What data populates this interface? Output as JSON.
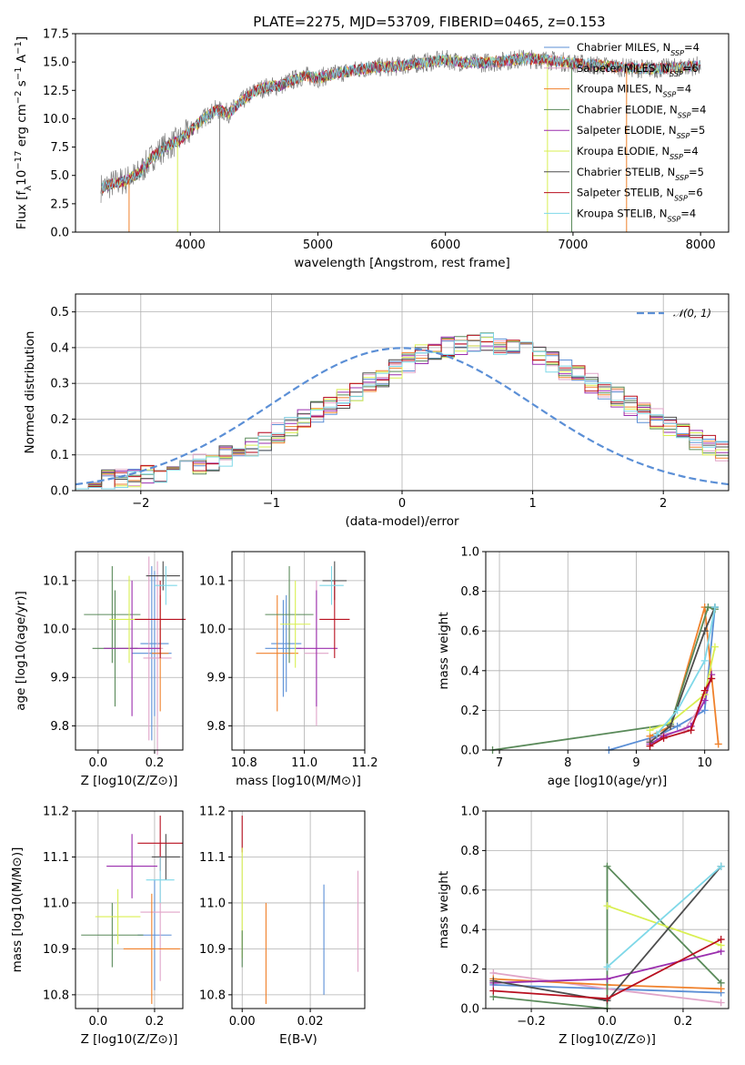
{
  "figure": {
    "title": "PLATE=2275, MJD=53709, FIBERID=0465, z=0.153"
  },
  "chart_data": [
    {
      "type": "line",
      "panel": "spectrum",
      "title": "PLATE=2275, MJD=53709, FIBERID=0465, z=0.153",
      "xlabel": "wavelength [Angstrom, rest frame]",
      "ylabel": "Flux [f_λ 10^-17 erg cm^-2 s^-1 A^-1]",
      "xlim": [
        3100,
        8220
      ],
      "ylim": [
        0,
        17.5
      ],
      "xticks": [
        4000,
        5000,
        6000,
        7000,
        8000
      ],
      "yticks": [
        0.0,
        2.5,
        5.0,
        7.5,
        10.0,
        12.5,
        15.0,
        17.5
      ],
      "ytick_labels": [
        "0.0",
        "2.5",
        "5.0",
        "7.5",
        "10.0",
        "12.5",
        "15.0",
        "17.5"
      ],
      "grid": false,
      "legend_position": "upper-right",
      "data_envelope": {
        "x": [
          3300,
          3400,
          3500,
          3600,
          3700,
          3800,
          3900,
          4000,
          4100,
          4200,
          4300,
          4400,
          4500,
          4600,
          4700,
          4800,
          4900,
          5000,
          5200,
          5400,
          5600,
          5800,
          6000,
          6200,
          6400,
          6600,
          6800,
          7000,
          7200,
          7400,
          7600,
          7800,
          8000
        ],
        "y": [
          3.9,
          4.3,
          4.6,
          5.2,
          6.6,
          7.5,
          8.0,
          8.9,
          10.0,
          10.8,
          10.5,
          11.5,
          12.4,
          12.8,
          12.9,
          13.4,
          13.8,
          13.6,
          14.1,
          14.5,
          14.6,
          14.9,
          15.2,
          14.9,
          15.0,
          15.3,
          15.2,
          14.9,
          14.7,
          14.5,
          14.4,
          14.5,
          14.7
        ]
      },
      "sharp_drops_x": [
        3520,
        3900,
        4230,
        6800,
        6990,
        7420
      ],
      "series": [
        {
          "name": "Chabrier MILES, N_SSP=4",
          "color": "#5b8fd6"
        },
        {
          "name": "Salpeter MILES, N_SSP=6",
          "color": "#e0a4c8"
        },
        {
          "name": "Kroupa MILES, N_SSP=4",
          "color": "#f0812b"
        },
        {
          "name": "Chabrier ELODIE, N_SSP=4",
          "color": "#5a8a5a"
        },
        {
          "name": "Salpeter ELODIE, N_SSP=5",
          "color": "#9b2fae"
        },
        {
          "name": "Kroupa ELODIE, N_SSP=4",
          "color": "#d9ef52"
        },
        {
          "name": "Chabrier STELIB, N_SSP=5",
          "color": "#4d4d4d"
        },
        {
          "name": "Salpeter STELIB, N_SSP=6",
          "color": "#b80f1f"
        },
        {
          "name": "Kroupa STELIB, N_SSP=4",
          "color": "#7fd8e8"
        }
      ]
    },
    {
      "type": "line",
      "panel": "residuals",
      "xlabel": "(data-model)/error",
      "ylabel": "Normed distribution",
      "xlim": [
        -2.5,
        2.5
      ],
      "ylim": [
        0,
        0.55
      ],
      "xticks": [
        -2,
        -1,
        0,
        1,
        2
      ],
      "xtick_labels": [
        "−2",
        "−1",
        "0",
        "1",
        "2"
      ],
      "yticks": [
        0.0,
        0.1,
        0.2,
        0.3,
        0.4,
        0.5
      ],
      "ytick_labels": [
        "0.0",
        "0.1",
        "0.2",
        "0.3",
        "0.4",
        "0.5"
      ],
      "grid": true,
      "legend_position": "upper-right",
      "legend_label": "𝒩(0, 1)",
      "bin_edges_start": -2.5,
      "bin_width": 0.1,
      "mean_histogram": [
        0.02,
        0.025,
        0.03,
        0.035,
        0.04,
        0.045,
        0.05,
        0.058,
        0.065,
        0.075,
        0.085,
        0.095,
        0.11,
        0.125,
        0.14,
        0.16,
        0.18,
        0.2,
        0.22,
        0.24,
        0.26,
        0.28,
        0.3,
        0.32,
        0.34,
        0.36,
        0.38,
        0.39,
        0.4,
        0.41,
        0.415,
        0.42,
        0.41,
        0.4,
        0.39,
        0.38,
        0.36,
        0.34,
        0.32,
        0.3,
        0.28,
        0.26,
        0.24,
        0.22,
        0.2,
        0.18,
        0.16,
        0.14,
        0.125,
        0.11
      ],
      "normal": {
        "mean": 0,
        "sigma": 1,
        "color": "#5b8fd6"
      }
    },
    {
      "type": "scatter",
      "panel": "age_vs_Z",
      "xlabel": "Z [log10(Z/Z⊙)]",
      "ylabel": "age  [log10(age/yr)]",
      "xlim": [
        -0.08,
        0.3
      ],
      "ylim": [
        9.75,
        10.16
      ],
      "xticks": [
        0.0,
        0.2
      ],
      "xtick_labels": [
        "0.0",
        "0.2"
      ],
      "yticks": [
        9.8,
        9.9,
        10.0,
        10.1
      ],
      "ytick_labels": [
        "9.8",
        "9.9",
        "10.0",
        "10.1"
      ],
      "grid": true,
      "points": [
        {
          "x": 0.19,
          "y": 9.95,
          "xerr": 0.07,
          "yerr": 0.18,
          "series": "Chabrier MILES"
        },
        {
          "x": 0.2,
          "y": 9.97,
          "xerr": 0.05,
          "yerr": 0.15,
          "series": "Chabrier MILES"
        },
        {
          "x": 0.18,
          "y": 9.96,
          "xerr": 0.05,
          "yerr": 0.19,
          "series": "Salpeter MILES"
        },
        {
          "x": 0.21,
          "y": 9.94,
          "xerr": 0.05,
          "yerr": 0.2,
          "series": "Salpeter MILES"
        },
        {
          "x": 0.22,
          "y": 9.95,
          "xerr": 0.03,
          "yerr": 0.12,
          "series": "Kroupa MILES"
        },
        {
          "x": 0.05,
          "y": 10.03,
          "xerr": 0.1,
          "yerr": 0.1,
          "series": "Chabrier ELODIE"
        },
        {
          "x": 0.06,
          "y": 9.96,
          "xerr": 0.08,
          "yerr": 0.12,
          "series": "Chabrier ELODIE"
        },
        {
          "x": 0.12,
          "y": 9.96,
          "xerr": 0.1,
          "yerr": 0.14,
          "series": "Salpeter ELODIE"
        },
        {
          "x": 0.11,
          "y": 10.02,
          "xerr": 0.07,
          "yerr": 0.09,
          "series": "Kroupa ELODIE"
        },
        {
          "x": 0.23,
          "y": 10.11,
          "xerr": 0.06,
          "yerr": 0.03,
          "series": "Chabrier STELIB"
        },
        {
          "x": 0.22,
          "y": 10.02,
          "xerr": 0.09,
          "yerr": 0.08,
          "series": "Salpeter STELIB"
        },
        {
          "x": 0.24,
          "y": 10.09,
          "xerr": 0.04,
          "yerr": 0.04,
          "series": "Kroupa STELIB"
        }
      ]
    },
    {
      "type": "scatter",
      "panel": "age_vs_mass",
      "xlabel": "mass [log10(M/M⊙)]",
      "ylabel": "",
      "xlim": [
        10.76,
        11.2
      ],
      "ylim": [
        9.75,
        10.16
      ],
      "xticks": [
        10.8,
        11.0,
        11.2
      ],
      "xtick_labels": [
        "10.8",
        "11.0",
        "11.2"
      ],
      "yticks": [
        9.8,
        9.9,
        10.0,
        10.1
      ],
      "ytick_labels": [
        "9.8",
        "9.9",
        "10.0",
        "10.1"
      ],
      "grid": true,
      "points": [
        {
          "x": 10.93,
          "y": 9.96,
          "xerr": 0.06,
          "yerr": 0.1,
          "series": "Chabrier MILES"
        },
        {
          "x": 10.94,
          "y": 9.97,
          "xerr": 0.05,
          "yerr": 0.1,
          "series": "Chabrier MILES"
        },
        {
          "x": 11.04,
          "y": 9.95,
          "xerr": 0.04,
          "yerr": 0.15,
          "series": "Salpeter MILES"
        },
        {
          "x": 10.91,
          "y": 9.95,
          "xerr": 0.07,
          "yerr": 0.12,
          "series": "Kroupa MILES"
        },
        {
          "x": 10.95,
          "y": 10.03,
          "xerr": 0.08,
          "yerr": 0.1,
          "series": "Chabrier ELODIE"
        },
        {
          "x": 11.04,
          "y": 9.96,
          "xerr": 0.07,
          "yerr": 0.12,
          "series": "Salpeter ELODIE"
        },
        {
          "x": 10.97,
          "y": 10.01,
          "xerr": 0.05,
          "yerr": 0.09,
          "series": "Kroupa ELODIE"
        },
        {
          "x": 11.1,
          "y": 10.1,
          "xerr": 0.04,
          "yerr": 0.04,
          "series": "Chabrier STELIB"
        },
        {
          "x": 11.1,
          "y": 10.02,
          "xerr": 0.05,
          "yerr": 0.08,
          "series": "Salpeter STELIB"
        },
        {
          "x": 11.09,
          "y": 10.09,
          "xerr": 0.04,
          "yerr": 0.04,
          "series": "Kroupa STELIB"
        }
      ]
    },
    {
      "type": "line",
      "panel": "mass_weight_vs_age",
      "xlabel": "age  [log10(age/yr)]",
      "ylabel": "mass weight",
      "xlim": [
        6.8,
        10.35
      ],
      "ylim": [
        0,
        1
      ],
      "xticks": [
        7,
        8,
        9,
        10
      ],
      "xtick_labels": [
        "7",
        "8",
        "9",
        "10"
      ],
      "yticks": [
        0.0,
        0.2,
        0.4,
        0.6,
        0.8,
        1.0
      ],
      "ytick_labels": [
        "0.0",
        "0.2",
        "0.4",
        "0.6",
        "0.8",
        "1.0"
      ],
      "grid": true,
      "series": [
        {
          "name": "Chabrier MILES",
          "x": [
            8.6,
            9.3,
            9.6,
            10.0,
            10.15
          ],
          "y": [
            0.0,
            0.07,
            0.12,
            0.2,
            0.72
          ]
        },
        {
          "name": "Salpeter MILES",
          "x": [
            9.2,
            9.4,
            9.7,
            9.9,
            10.1
          ],
          "y": [
            0.05,
            0.08,
            0.1,
            0.2,
            0.36
          ]
        },
        {
          "name": "Kroupa MILES",
          "x": [
            9.2,
            9.5,
            10.0,
            10.2
          ],
          "y": [
            0.07,
            0.12,
            0.72,
            0.03
          ]
        },
        {
          "name": "Chabrier ELODIE",
          "x": [
            6.9,
            9.5,
            10.05,
            10.15
          ],
          "y": [
            0.0,
            0.13,
            0.72,
            0.71
          ]
        },
        {
          "name": "Salpeter ELODIE",
          "x": [
            9.2,
            9.4,
            9.8,
            10.0,
            10.1
          ],
          "y": [
            0.03,
            0.07,
            0.12,
            0.25,
            0.38
          ]
        },
        {
          "name": "Kroupa ELODIE",
          "x": [
            9.2,
            9.5,
            10.0,
            10.15
          ],
          "y": [
            0.1,
            0.14,
            0.28,
            0.52
          ]
        },
        {
          "name": "Chabrier STELIB",
          "x": [
            9.2,
            9.5,
            10.0,
            10.15
          ],
          "y": [
            0.04,
            0.12,
            0.6,
            0.72
          ]
        },
        {
          "name": "Salpeter STELIB",
          "x": [
            9.2,
            9.4,
            9.8,
            10.0,
            10.1
          ],
          "y": [
            0.02,
            0.06,
            0.1,
            0.3,
            0.36
          ]
        },
        {
          "name": "Kroupa STELIB",
          "x": [
            9.3,
            9.6,
            10.0,
            10.15
          ],
          "y": [
            0.08,
            0.2,
            0.45,
            0.72
          ]
        }
      ]
    },
    {
      "type": "scatter",
      "panel": "mass_vs_Z",
      "xlabel": "Z [log10(Z/Z⊙)]",
      "ylabel": "mass [log10(M/M⊙)]",
      "xlim": [
        -0.08,
        0.3
      ],
      "ylim": [
        10.77,
        11.2
      ],
      "xticks": [
        0.0,
        0.2
      ],
      "xtick_labels": [
        "0.0",
        "0.2"
      ],
      "yticks": [
        10.8,
        10.9,
        11.0,
        11.1,
        11.2
      ],
      "ytick_labels": [
        "10.8",
        "10.9",
        "11.0",
        "11.1",
        "11.2"
      ],
      "grid": true,
      "points": [
        {
          "x": 0.2,
          "y": 10.93,
          "xerr": 0.06,
          "yerr": 0.12,
          "series": "Chabrier MILES"
        },
        {
          "x": 0.22,
          "y": 10.98,
          "xerr": 0.07,
          "yerr": 0.15,
          "series": "Salpeter MILES"
        },
        {
          "x": 0.19,
          "y": 10.9,
          "xerr": 0.1,
          "yerr": 0.12,
          "series": "Kroupa MILES"
        },
        {
          "x": 0.05,
          "y": 10.93,
          "xerr": 0.11,
          "yerr": 0.07,
          "series": "Chabrier ELODIE"
        },
        {
          "x": 0.12,
          "y": 11.08,
          "xerr": 0.09,
          "yerr": 0.07,
          "series": "Salpeter ELODIE"
        },
        {
          "x": 0.07,
          "y": 10.97,
          "xerr": 0.08,
          "yerr": 0.06,
          "series": "Kroupa ELODIE"
        },
        {
          "x": 0.24,
          "y": 11.1,
          "xerr": 0.05,
          "yerr": 0.05,
          "series": "Chabrier STELIB"
        },
        {
          "x": 0.22,
          "y": 11.13,
          "xerr": 0.08,
          "yerr": 0.06,
          "series": "Salpeter STELIB"
        },
        {
          "x": 0.22,
          "y": 11.05,
          "xerr": 0.05,
          "yerr": 0.05,
          "series": "Kroupa STELIB"
        }
      ]
    },
    {
      "type": "scatter",
      "panel": "mass_vs_ebv",
      "xlabel": "E(B-V)",
      "ylabel": "",
      "xlim": [
        -0.003,
        0.036
      ],
      "ylim": [
        10.77,
        11.2
      ],
      "xticks": [
        0.0,
        0.02
      ],
      "xtick_labels": [
        "0.00",
        "0.02"
      ],
      "yticks": [
        10.8,
        10.9,
        11.0,
        11.1,
        11.2
      ],
      "ytick_labels": [
        "10.8",
        "10.9",
        "11.0",
        "11.1",
        "11.2"
      ],
      "grid": true,
      "points": [
        {
          "x": 0.0,
          "y": 11.15,
          "xerr": 0,
          "yerr": 0.04,
          "series": "Salpeter STELIB"
        },
        {
          "x": 0.0,
          "y": 11.0,
          "xerr": 0,
          "yerr": 0.12,
          "series": "Kroupa ELODIE"
        },
        {
          "x": 0.0,
          "y": 10.9,
          "xerr": 0,
          "yerr": 0.04,
          "series": "Chabrier ELODIE"
        },
        {
          "x": 0.007,
          "y": 10.89,
          "xerr": 0,
          "yerr": 0.11,
          "series": "Kroupa MILES"
        },
        {
          "x": 0.024,
          "y": 10.92,
          "xerr": 0,
          "yerr": 0.12,
          "series": "Chabrier MILES"
        },
        {
          "x": 0.034,
          "y": 10.96,
          "xerr": 0,
          "yerr": 0.11,
          "series": "Salpeter MILES"
        }
      ]
    },
    {
      "type": "line",
      "panel": "mass_weight_vs_Z",
      "xlabel": "Z [log10(Z/Z⊙)]",
      "ylabel": "mass weight",
      "xlim": [
        -0.32,
        0.32
      ],
      "ylim": [
        0,
        1
      ],
      "xticks": [
        -0.2,
        0.0,
        0.2
      ],
      "xtick_labels": [
        "−0.2",
        "0.0",
        "0.2"
      ],
      "yticks": [
        0.0,
        0.2,
        0.4,
        0.6,
        0.8,
        1.0
      ],
      "ytick_labels": [
        "0.0",
        "0.2",
        "0.4",
        "0.6",
        "0.8",
        "1.0"
      ],
      "grid": true,
      "series": [
        {
          "name": "Chabrier MILES",
          "x": [
            -0.3,
            0.0,
            0.3
          ],
          "y": [
            0.12,
            0.1,
            0.08
          ]
        },
        {
          "name": "Salpeter MILES",
          "x": [
            -0.3,
            0.0,
            0.3
          ],
          "y": [
            0.18,
            0.1,
            0.03
          ]
        },
        {
          "name": "Kroupa MILES",
          "x": [
            -0.3,
            0.0,
            0.3
          ],
          "y": [
            0.15,
            0.12,
            0.1
          ]
        },
        {
          "name": "Chabrier ELODIE",
          "x": [
            -0.3,
            0.0,
            0.0,
            0.3
          ],
          "y": [
            0.06,
            0.0,
            0.72,
            0.13
          ]
        },
        {
          "name": "Salpeter ELODIE",
          "x": [
            -0.3,
            0.0,
            0.3
          ],
          "y": [
            0.13,
            0.15,
            0.29
          ]
        },
        {
          "name": "Kroupa ELODIE",
          "x": [
            0.0,
            0.3
          ],
          "y": [
            0.52,
            0.32
          ]
        },
        {
          "name": "Chabrier STELIB",
          "x": [
            -0.3,
            0.0,
            0.3
          ],
          "y": [
            0.14,
            0.04,
            0.72
          ]
        },
        {
          "name": "Salpeter STELIB",
          "x": [
            -0.3,
            0.0,
            0.3
          ],
          "y": [
            0.09,
            0.05,
            0.35
          ]
        },
        {
          "name": "Kroupa STELIB",
          "x": [
            0.0,
            0.3
          ],
          "y": [
            0.21,
            0.72
          ]
        }
      ]
    }
  ]
}
